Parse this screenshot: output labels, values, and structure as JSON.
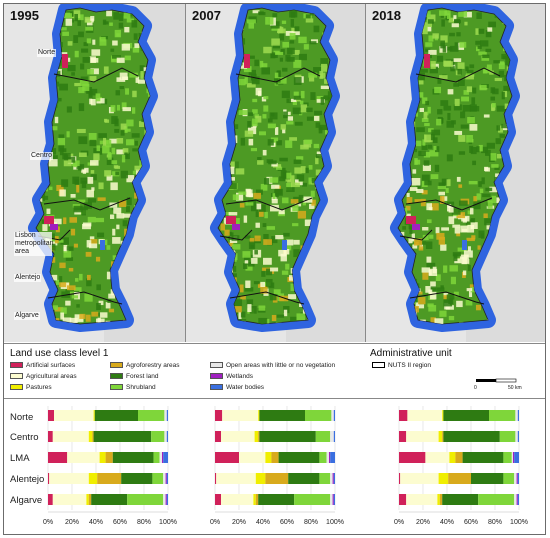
{
  "maps": [
    {
      "year": "1995"
    },
    {
      "year": "2007"
    },
    {
      "year": "2018"
    }
  ],
  "region_labels": {
    "norte": "Norte",
    "centro": "Centro",
    "lisbon": "Lisbon metropolitan area",
    "alentejo": "Alentejo",
    "algarve": "Algarve"
  },
  "legend": {
    "title": "Land use class level 1",
    "items": [
      {
        "label": "Artificial surfaces",
        "color": "#d0215a"
      },
      {
        "label": "Agricultural areas",
        "color": "#fcfcd0"
      },
      {
        "label": "Pastures",
        "color": "#f0ee00"
      },
      {
        "label": "Agroforestry areas",
        "color": "#d8aa1c"
      },
      {
        "label": "Forest land",
        "color": "#2e7b12"
      },
      {
        "label": "Shrubland",
        "color": "#7fd63a"
      },
      {
        "label": "Open areas with little or no vegetation",
        "color": "#e8e8e8"
      },
      {
        "label": "Wetlands",
        "color": "#a020c0"
      },
      {
        "label": "Water bodies",
        "color": "#3a6fe0"
      }
    ],
    "admin_title": "Administrative unit",
    "admin_item": "NUTS II region",
    "scale_zero": "0",
    "scale_end": "50 km"
  },
  "chart_data": [
    {
      "type": "bar",
      "year": "1995",
      "categories": [
        "Norte",
        "Centro",
        "LMA",
        "Alentejo",
        "Algarve"
      ],
      "x_ticks": [
        "0%",
        "20%",
        "40%",
        "60%",
        "80%",
        "100%"
      ],
      "xlim": [
        0,
        100
      ],
      "series": [
        {
          "name": "Artificial surfaces",
          "values": [
            5,
            4,
            16,
            1,
            4
          ]
        },
        {
          "name": "Agricultural areas",
          "values": [
            33,
            30,
            27,
            33,
            28
          ]
        },
        {
          "name": "Pastures",
          "values": [
            1,
            3,
            5,
            7,
            2
          ]
        },
        {
          "name": "Agroforestry areas",
          "values": [
            0,
            1,
            6,
            20,
            2
          ]
        },
        {
          "name": "Forest land",
          "values": [
            36,
            48,
            34,
            26,
            30
          ]
        },
        {
          "name": "Shrubland",
          "values": [
            22,
            11,
            5,
            9,
            30
          ]
        },
        {
          "name": "Open areas with little or no vegetation",
          "values": [
            2,
            2,
            2,
            2,
            2
          ]
        },
        {
          "name": "Wetlands",
          "values": [
            0,
            0,
            1,
            1,
            1
          ]
        },
        {
          "name": "Water bodies",
          "values": [
            1,
            1,
            4,
            1,
            1
          ]
        }
      ]
    },
    {
      "type": "bar",
      "year": "2007",
      "categories": [
        "Norte",
        "Centro",
        "LMA",
        "Alentejo",
        "Algarve"
      ],
      "x_ticks": [
        "0%",
        "20%",
        "40%",
        "60%",
        "80%",
        "100%"
      ],
      "xlim": [
        0,
        100
      ],
      "series": [
        {
          "name": "Artificial surfaces",
          "values": [
            6,
            5,
            20,
            1,
            5
          ]
        },
        {
          "name": "Agricultural areas",
          "values": [
            30,
            28,
            22,
            33,
            27
          ]
        },
        {
          "name": "Pastures",
          "values": [
            1,
            3,
            5,
            8,
            2
          ]
        },
        {
          "name": "Agroforestry areas",
          "values": [
            0,
            1,
            6,
            19,
            2
          ]
        },
        {
          "name": "Forest land",
          "values": [
            38,
            47,
            34,
            26,
            30
          ]
        },
        {
          "name": "Shrubland",
          "values": [
            22,
            12,
            6,
            9,
            30
          ]
        },
        {
          "name": "Open areas with little or no vegetation",
          "values": [
            2,
            3,
            2,
            2,
            2
          ]
        },
        {
          "name": "Wetlands",
          "values": [
            0,
            0,
            1,
            1,
            1
          ]
        },
        {
          "name": "Water bodies",
          "values": [
            1,
            1,
            4,
            1,
            1
          ]
        }
      ]
    },
    {
      "type": "bar",
      "year": "2018",
      "categories": [
        "Norte",
        "Centro",
        "LMA",
        "Alentejo",
        "Algarve"
      ],
      "x_ticks": [
        "0%",
        "20%",
        "40%",
        "60%",
        "80%",
        "100%"
      ],
      "xlim": [
        0,
        100
      ],
      "series": [
        {
          "name": "Artificial surfaces",
          "values": [
            7,
            6,
            22,
            1,
            6
          ]
        },
        {
          "name": "Agricultural areas",
          "values": [
            29,
            27,
            20,
            32,
            26
          ]
        },
        {
          "name": "Pastures",
          "values": [
            1,
            3,
            5,
            8,
            2
          ]
        },
        {
          "name": "Agroforestry areas",
          "values": [
            0,
            1,
            6,
            19,
            2
          ]
        },
        {
          "name": "Forest land",
          "values": [
            38,
            47,
            34,
            27,
            30
          ]
        },
        {
          "name": "Shrubland",
          "values": [
            22,
            13,
            7,
            9,
            30
          ]
        },
        {
          "name": "Open areas with little or no vegetation",
          "values": [
            2,
            2,
            1,
            2,
            2
          ]
        },
        {
          "name": "Wetlands",
          "values": [
            0,
            0,
            1,
            1,
            1
          ]
        },
        {
          "name": "Water bodies",
          "values": [
            1,
            1,
            4,
            1,
            1
          ]
        }
      ]
    }
  ]
}
